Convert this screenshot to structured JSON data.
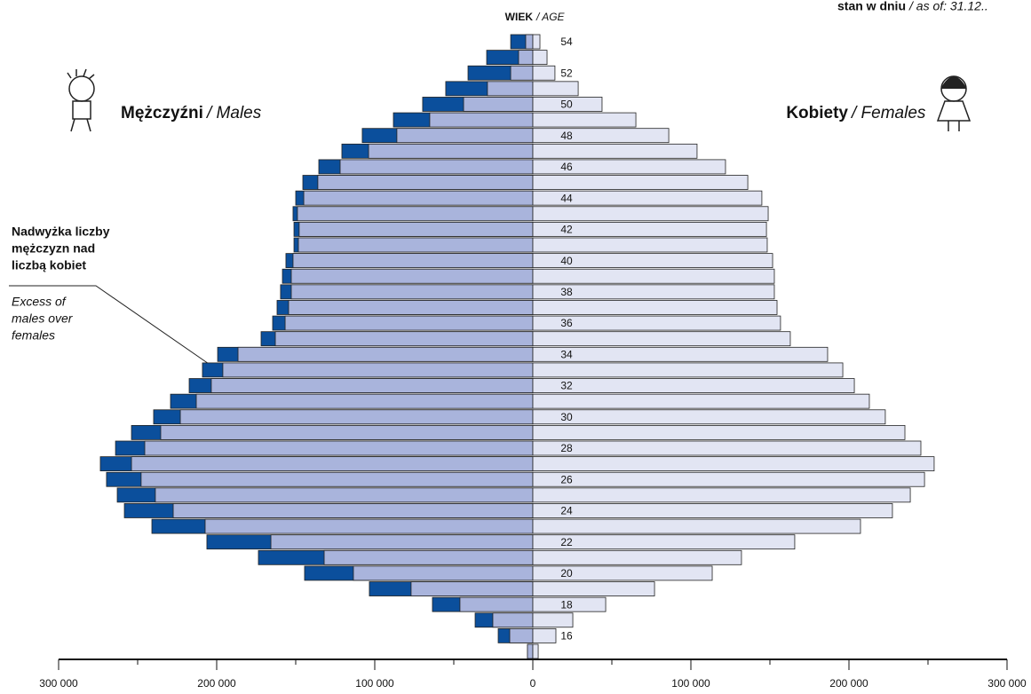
{
  "chart_data": {
    "type": "pyramid",
    "age_label": {
      "pl": "WIEK",
      "en": "/ AGE"
    },
    "as_of": {
      "pl": "stan w dniu",
      "en": "/ as of: 31.12.."
    },
    "annotation": {
      "pl": [
        "Nadwyżka liczby",
        "mężczyzn nad",
        "liczbą kobiet"
      ],
      "en": [
        "Excess of",
        "males over",
        "females"
      ],
      "color": "#0b4f9c"
    },
    "categories": [
      "54",
      null,
      "52",
      null,
      "50",
      null,
      "48",
      null,
      "46",
      null,
      "44",
      null,
      "42",
      null,
      "40",
      null,
      "38",
      null,
      "36",
      null,
      "34",
      null,
      "32",
      null,
      "30",
      null,
      "28",
      null,
      "26",
      null,
      "24",
      null,
      "22",
      null,
      "20",
      null,
      "18",
      null,
      "16",
      null
    ],
    "series": [
      {
        "name": "Mężczyźni",
        "name_en": "/ Males",
        "color": "#a9b4dc",
        "values": [
          14000,
          29200,
          41000,
          55100,
          69700,
          88200,
          107900,
          120800,
          135400,
          145500,
          150000,
          151700,
          151100,
          151100,
          156200,
          158400,
          159600,
          161800,
          164600,
          171900,
          199400,
          209000,
          217400,
          229200,
          239900,
          253900,
          264000,
          273600,
          269700,
          262900,
          258400,
          241000,
          206200,
          173600,
          144400,
          103400,
          63500,
          36500,
          21900,
          3400
        ]
      },
      {
        "name": "Kobiety",
        "name_en": "/ Females",
        "color": "#e2e5f3",
        "values": [
          4500,
          9000,
          14000,
          28700,
          43800,
          65200,
          86000,
          103900,
          121900,
          136000,
          144900,
          148900,
          147800,
          148300,
          151700,
          152800,
          152800,
          154500,
          156700,
          162900,
          186500,
          196100,
          203400,
          212900,
          223000,
          235400,
          245500,
          253900,
          247800,
          238800,
          227500,
          207300,
          165700,
          132000,
          113500,
          77000,
          46100,
          25300,
          14600,
          3400
        ]
      }
    ],
    "xlim": [
      0,
      300000
    ],
    "xticks": [
      {
        "value": 0,
        "label": "0"
      },
      {
        "value": 100000,
        "label": "100 000"
      },
      {
        "value": 200000,
        "label": "200 000"
      },
      {
        "value": 300000,
        "label": "300 000"
      }
    ],
    "minor_xticks": [
      50000,
      150000,
      250000
    ]
  }
}
